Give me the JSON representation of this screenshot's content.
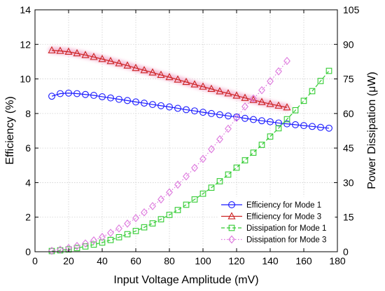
{
  "chart_data": {
    "type": "line",
    "xlabel": "Input Voltage Amplitude (mV)",
    "ylabel_left": "Efficiency (%)",
    "ylabel_right": "Power Dissipation (μW)",
    "xlim": [
      0,
      180
    ],
    "ylim_left": [
      0,
      14
    ],
    "ylim_right": [
      0,
      105
    ],
    "x_ticks": [
      "0",
      "20",
      "40",
      "60",
      "80",
      "100",
      "120",
      "140",
      "160",
      "180"
    ],
    "y_left_ticks": [
      "0",
      "2",
      "4",
      "6",
      "8",
      "10",
      "12",
      "14"
    ],
    "y_right_ticks": [
      "0",
      "15",
      "30",
      "45",
      "60",
      "75",
      "90",
      "105"
    ],
    "grid": true,
    "legend_position": "bottom-right",
    "colors": {
      "efficiency_mode1": "#1a1aff",
      "efficiency_mode3": "#cc2222",
      "dissipation_mode1": "#33cc33",
      "dissipation_mode3": "#dd77dd",
      "mode3_glow": "#f4b6d2"
    },
    "series": [
      {
        "name": "Efficiency for Mode 1",
        "axis": "left",
        "marker": "circle",
        "line": "solid",
        "x": [
          10,
          15,
          20,
          25,
          30,
          35,
          40,
          45,
          50,
          55,
          60,
          65,
          70,
          75,
          80,
          85,
          90,
          95,
          100,
          105,
          110,
          115,
          120,
          125,
          130,
          135,
          140,
          145,
          150,
          155,
          160,
          165,
          170,
          175
        ],
        "values": [
          9.0,
          9.15,
          9.18,
          9.15,
          9.1,
          9.05,
          8.97,
          8.9,
          8.82,
          8.75,
          8.67,
          8.6,
          8.52,
          8.45,
          8.38,
          8.3,
          8.22,
          8.15,
          8.07,
          8.0,
          7.93,
          7.86,
          7.8,
          7.72,
          7.65,
          7.58,
          7.52,
          7.45,
          7.4,
          7.35,
          7.3,
          7.25,
          7.2,
          7.15
        ]
      },
      {
        "name": "Efficiency for Mode 3",
        "axis": "left",
        "marker": "triangle",
        "line": "solid",
        "x": [
          10,
          15,
          20,
          25,
          30,
          35,
          40,
          45,
          50,
          55,
          60,
          65,
          70,
          75,
          80,
          85,
          90,
          95,
          100,
          105,
          110,
          115,
          120,
          125,
          130,
          135,
          140,
          145,
          150
        ],
        "values": [
          11.65,
          11.62,
          11.57,
          11.48,
          11.38,
          11.27,
          11.15,
          11.03,
          10.9,
          10.77,
          10.63,
          10.5,
          10.37,
          10.23,
          10.1,
          9.96,
          9.82,
          9.68,
          9.55,
          9.42,
          9.28,
          9.16,
          9.03,
          8.9,
          8.78,
          8.66,
          8.55,
          8.45,
          8.35
        ]
      },
      {
        "name": "Dissipation for Mode 1",
        "axis": "right",
        "marker": "square",
        "line": "dashed",
        "x": [
          10,
          15,
          20,
          25,
          30,
          35,
          40,
          45,
          50,
          55,
          60,
          65,
          70,
          75,
          80,
          85,
          90,
          95,
          100,
          105,
          110,
          115,
          120,
          125,
          130,
          135,
          140,
          145,
          150,
          155,
          160,
          165,
          170,
          175
        ],
        "values": [
          0.3,
          0.6,
          1.0,
          1.6,
          2.3,
          3.1,
          4.0,
          5.1,
          6.3,
          7.6,
          9.0,
          10.6,
          12.3,
          14.1,
          16.0,
          18.1,
          20.4,
          22.7,
          25.2,
          27.8,
          30.6,
          33.5,
          36.5,
          39.7,
          43.0,
          46.4,
          50.0,
          53.6,
          57.5,
          61.4,
          65.5,
          69.7,
          74.1,
          78.5
        ]
      },
      {
        "name": "Dissipation for Mode 3",
        "axis": "right",
        "marker": "diamond",
        "line": "dotted",
        "x": [
          10,
          15,
          20,
          25,
          30,
          35,
          40,
          45,
          50,
          55,
          60,
          65,
          70,
          75,
          80,
          85,
          90,
          95,
          100,
          105,
          110,
          115,
          120,
          125,
          130,
          135,
          140,
          145,
          150
        ],
        "values": [
          0.4,
          0.9,
          1.6,
          2.5,
          3.6,
          4.9,
          6.4,
          8.2,
          10.1,
          12.2,
          14.6,
          17.1,
          19.8,
          22.7,
          25.8,
          29.1,
          32.7,
          36.4,
          40.3,
          44.5,
          48.8,
          53.4,
          58.1,
          63.0,
          66.5,
          70.1,
          74.0,
          78.3,
          82.8
        ]
      }
    ]
  }
}
